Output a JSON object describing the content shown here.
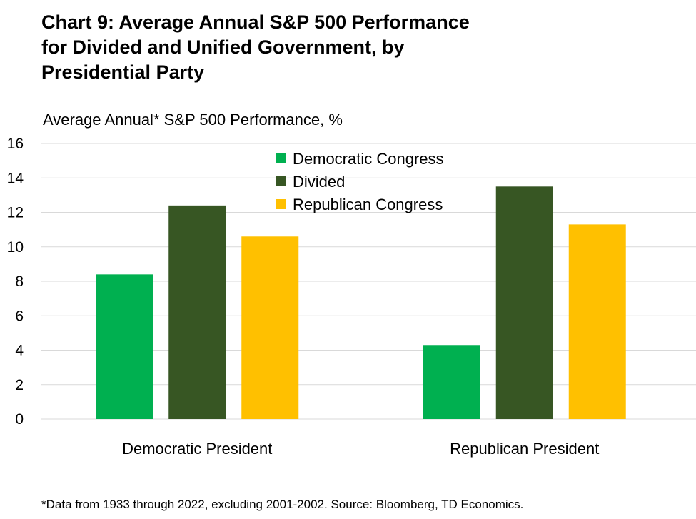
{
  "title_lines": [
    "Chart 9: Average Annual S&P 500 Performance",
    "for Divided and Unified Government, by",
    "Presidential Party"
  ],
  "footnote": "*Data from 1933 through 2022, excluding 2001-2002. Source: Bloomberg, TD Economics.",
  "chart_data": {
    "type": "bar",
    "title": "Chart 9: Average Annual S&P 500 Performance for Divided and Unified Government, by Presidential Party",
    "ylabel": "Average Annual* S&P 500 Performance, %",
    "xlabel": "",
    "categories": [
      "Democratic President",
      "Republican President"
    ],
    "ylim": [
      0,
      16
    ],
    "yticks": [
      0,
      2,
      4,
      6,
      8,
      10,
      12,
      14,
      16
    ],
    "grid": true,
    "legend_position": "top-center",
    "series": [
      {
        "name": "Democratic Congress",
        "color": "#00b050",
        "values": [
          8.4,
          4.3
        ]
      },
      {
        "name": "Divided",
        "color": "#375623",
        "values": [
          12.4,
          13.5
        ]
      },
      {
        "name": "Republican Congress",
        "color": "#ffc000",
        "values": [
          10.6,
          11.3
        ]
      }
    ]
  }
}
